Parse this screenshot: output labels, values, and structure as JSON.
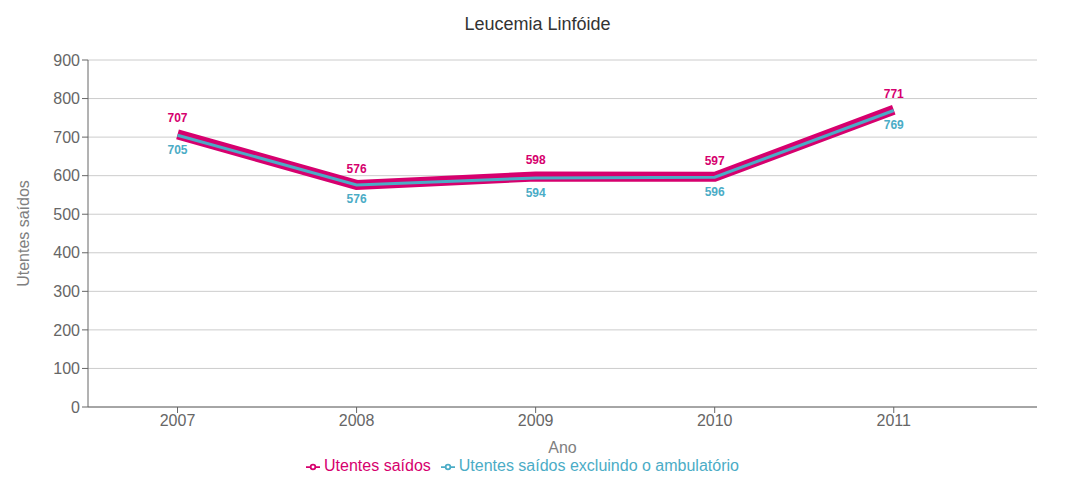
{
  "chart_data": {
    "type": "line",
    "title": "Leucemia Linfóide",
    "x": [
      2007,
      2008,
      2009,
      2010,
      2011
    ],
    "series": [
      {
        "name": "Utentes saídos",
        "color": "#d6006e",
        "values": [
          707,
          576,
          598,
          597,
          771
        ]
      },
      {
        "name": "Utentes saídos excluindo o ambulatório",
        "color": "#4bacc6",
        "values": [
          705,
          576,
          594,
          596,
          769
        ]
      }
    ],
    "xlabel": "Ano",
    "ylabel": "Utentes saídos",
    "xlim": [
      2006.5,
      2011.8
    ],
    "xticks": [
      2007,
      2008,
      2009,
      2010,
      2011
    ],
    "ylim": [
      0,
      900
    ],
    "yticks": [
      0,
      100,
      200,
      300,
      400,
      500,
      600,
      700,
      800,
      900
    ],
    "grid": true,
    "legend": "bottom",
    "data_labels": true
  }
}
